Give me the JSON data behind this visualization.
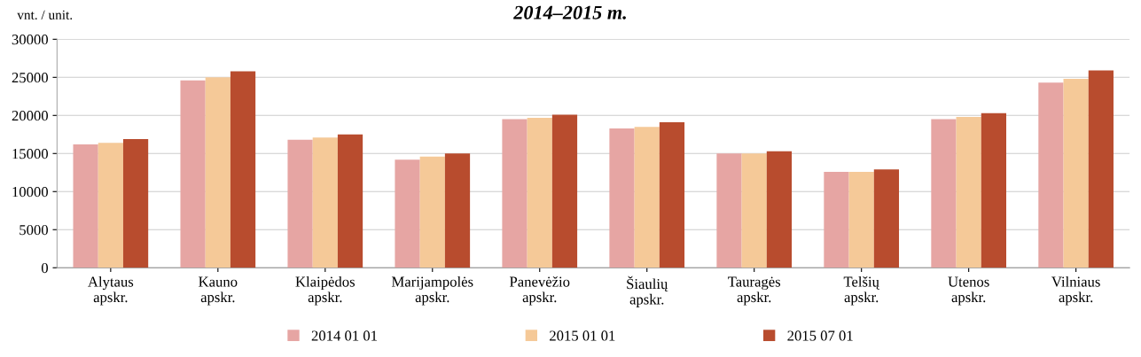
{
  "chart_data": {
    "type": "bar",
    "title": "2014–2015 m.",
    "ylabel": "vnt. / unit.",
    "categories": [
      "Alytaus\napskr.",
      "Kauno\napskr.",
      "Klaipėdos\napskr.",
      "Marijampolės\napskr.",
      "Panevėžio\napskr.",
      "Šiaulių\napskr.",
      "Tauragės\napskr.",
      "Telšių\napskr.",
      "Utenos\napskr.",
      "Vilniaus\napskr."
    ],
    "series": [
      {
        "name": "2014 01 01",
        "color": "#e6a5a3",
        "values": [
          16200,
          24600,
          16800,
          14200,
          19500,
          18300,
          15000,
          12600,
          19500,
          24300
        ]
      },
      {
        "name": "2015 01 01",
        "color": "#f5c998",
        "values": [
          16400,
          25000,
          17100,
          14600,
          19700,
          18500,
          15000,
          12600,
          19800,
          24800
        ]
      },
      {
        "name": "2015 07 01",
        "color": "#b84c2e",
        "values": [
          16900,
          25800,
          17500,
          15000,
          20100,
          19100,
          15300,
          12900,
          20300,
          25900
        ]
      }
    ],
    "ylim": [
      0,
      30000
    ],
    "yticks": [
      0,
      5000,
      10000,
      15000,
      20000,
      25000,
      30000
    ],
    "grid": "y",
    "legend": "bottom"
  }
}
